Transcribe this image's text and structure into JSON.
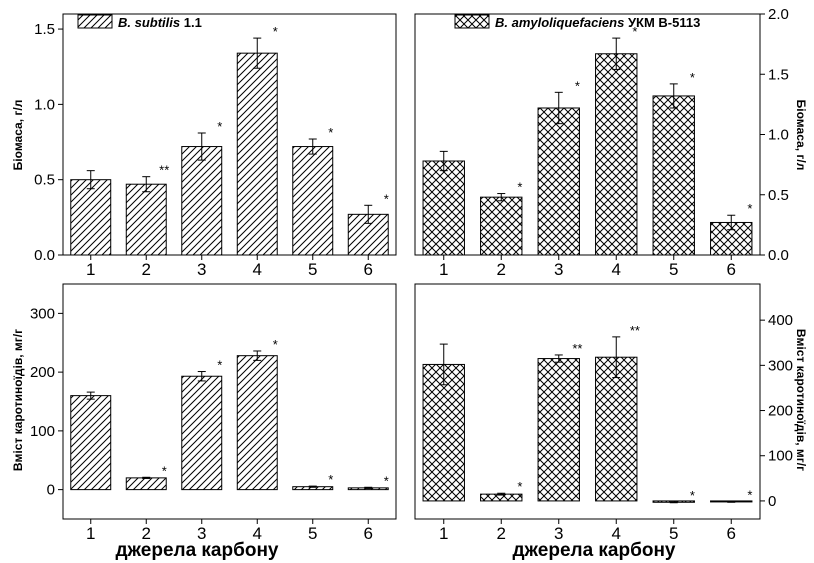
{
  "figure": {
    "xlabel": "джерела карбону",
    "legend": [
      {
        "italic": "B. subtilis",
        "rest": " 1.1",
        "pattern": "hatch"
      },
      {
        "italic": "B. amyloliquefaciens",
        "rest": " УКМ В-5113",
        "pattern": "crosshatch"
      }
    ]
  },
  "chart_data": [
    {
      "type": "bar",
      "panel": "top-left",
      "ylabel": "Біомаса, г/л",
      "ylim": [
        0,
        1.6
      ],
      "yticks": [
        "0.0",
        "0.5",
        "1.0",
        "1.5"
      ],
      "categories": [
        "1",
        "2",
        "3",
        "4",
        "5",
        "6"
      ],
      "series": [
        {
          "name": "B. subtilis 1.1",
          "values": [
            0.5,
            0.47,
            0.72,
            1.34,
            0.72,
            0.27
          ],
          "errors": [
            0.06,
            0.05,
            0.09,
            0.1,
            0.05,
            0.06
          ]
        }
      ],
      "significance": [
        "",
        "**",
        "*",
        "*",
        "*",
        "*"
      ]
    },
    {
      "type": "bar",
      "panel": "top-right",
      "ylabel": "Біомаса, г/л",
      "ylim": [
        0,
        2.0
      ],
      "yticks": [
        "0.0",
        "0.5",
        "1.0",
        "1.5",
        "2.0"
      ],
      "categories": [
        "1",
        "2",
        "3",
        "4",
        "5",
        "6"
      ],
      "series": [
        {
          "name": "B. amyloliquefaciens УКМ В-5113",
          "values": [
            0.78,
            0.48,
            1.22,
            1.67,
            1.32,
            0.27
          ],
          "errors": [
            0.08,
            0.03,
            0.13,
            0.13,
            0.1,
            0.06
          ]
        }
      ],
      "significance": [
        "",
        "*",
        "*",
        "*",
        "*",
        "*"
      ]
    },
    {
      "type": "bar",
      "panel": "bottom-left",
      "ylabel": "Вміст каротиноїдів, мг/г",
      "ylim": [
        -50,
        350
      ],
      "yticks": [
        "0",
        "100",
        "200",
        "300"
      ],
      "categories": [
        "1",
        "2",
        "3",
        "4",
        "5",
        "6"
      ],
      "series": [
        {
          "name": "B. subtilis 1.1",
          "values": [
            160,
            20,
            193,
            228,
            5,
            3
          ],
          "errors": [
            6,
            1,
            8,
            8,
            1,
            1
          ]
        }
      ],
      "significance": [
        "",
        "*",
        "*",
        "*",
        "*",
        "*"
      ]
    },
    {
      "type": "bar",
      "panel": "bottom-right",
      "ylabel": "Вміст каротиноїдів, мг/г",
      "ylim": [
        -40,
        480
      ],
      "yticks": [
        "0",
        "100",
        "200",
        "300",
        "400"
      ],
      "categories": [
        "1",
        "2",
        "3",
        "4",
        "5",
        "6"
      ],
      "series": [
        {
          "name": "B. amyloliquefaciens УКМ В-5113",
          "values": [
            302,
            15,
            315,
            318,
            -3,
            -2
          ],
          "errors": [
            45,
            2,
            8,
            45,
            1,
            1
          ]
        }
      ],
      "significance": [
        "",
        "*",
        "**",
        "**",
        "*",
        "*"
      ]
    }
  ]
}
